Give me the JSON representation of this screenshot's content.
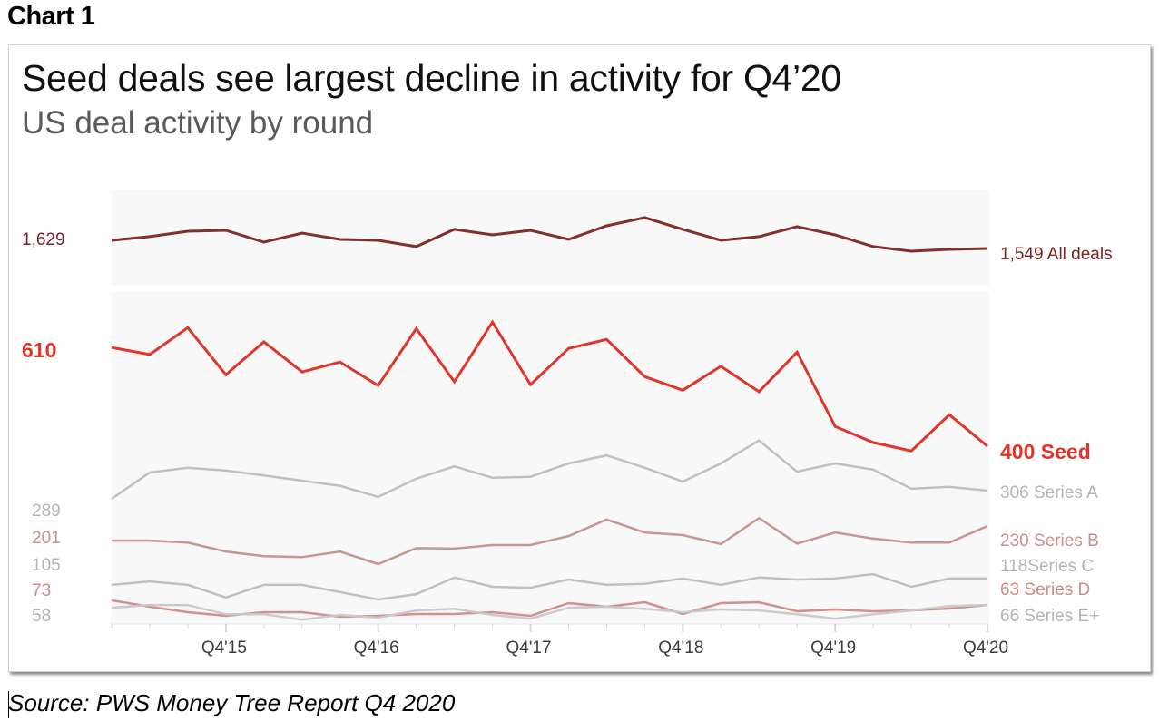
{
  "figure_label": "Chart 1",
  "source": "Source: PWS Money Tree Report Q4 2020",
  "chart_data": {
    "type": "line",
    "title": "Seed deals see largest decline in activity for Q4’20",
    "subtitle": "US deal activity by round",
    "xlabel": "",
    "ylabel": "",
    "grid": false,
    "legend": "direct labels at line ends (right)",
    "x": [
      "Q1'15",
      "Q2'15",
      "Q3'15",
      "Q4'15",
      "Q1'16",
      "Q2'16",
      "Q3'16",
      "Q4'16",
      "Q1'17",
      "Q2'17",
      "Q3'17",
      "Q4'17",
      "Q1'18",
      "Q2'18",
      "Q3'18",
      "Q4'18",
      "Q1'19",
      "Q2'19",
      "Q3'19",
      "Q4'19",
      "Q1'20",
      "Q2'20",
      "Q3'20",
      "Q4'20"
    ],
    "x_tick_labels": [
      "Q4'15",
      "Q4'16",
      "Q4'17",
      "Q4'18",
      "Q4'19",
      "Q4'20"
    ],
    "panels": [
      {
        "name": "top",
        "series": [
          "All deals"
        ]
      },
      {
        "name": "bottom",
        "series": [
          "Seed",
          "Series A",
          "Series B",
          "Series C",
          "Series D",
          "Series E+"
        ]
      }
    ],
    "series": [
      {
        "name": "All deals",
        "panel": "top",
        "color": "#7b2424",
        "start_label": "1,629",
        "end_label": "1,549 All deals",
        "ylim": [
          1184,
          2118
        ],
        "values": [
          1629,
          1665,
          1718,
          1727,
          1611,
          1700,
          1638,
          1629,
          1567,
          1736,
          1682,
          1727,
          1638,
          1771,
          1852,
          1736,
          1629,
          1665,
          1763,
          1682,
          1567,
          1522,
          1540,
          1549
        ]
      },
      {
        "name": "Seed",
        "panel": "bottom",
        "color": "#e0352b",
        "start_label": "610",
        "end_label": "400  Seed",
        "emphasis": true,
        "ylim": [
          18,
          728
        ],
        "values": [
          610,
          595,
          652,
          552,
          622,
          558,
          579,
          529,
          650,
          537,
          664,
          531,
          608,
          627,
          548,
          519,
          570,
          516,
          600,
          442,
          408,
          390,
          467,
          400
        ]
      },
      {
        "name": "Series A",
        "panel": "bottom",
        "color": "#bdbdbd",
        "start_label": "289",
        "end_label": "306 Series A",
        "ylim": [
          23,
          722
        ],
        "values": [
          289,
          344,
          354,
          348,
          338,
          327,
          316,
          293,
          331,
          357,
          333,
          335,
          363,
          380,
          354,
          325,
          363,
          411,
          346,
          363,
          350,
          310,
          314,
          306
        ]
      },
      {
        "name": "Series B",
        "panel": "bottom",
        "color": "#c4908c",
        "start_label": "201",
        "end_label": "230  Series B",
        "ylim": [
          31,
          697
        ],
        "values": [
          201,
          201,
          197,
          179,
          170,
          168,
          179,
          154,
          186,
          185,
          192,
          192,
          210,
          243,
          217,
          212,
          194,
          246,
          195,
          217,
          205,
          197,
          197,
          230
        ]
      },
      {
        "name": "Series C",
        "panel": "bottom",
        "color": "#bdbdbd",
        "start_label": "105",
        "end_label": "118Series C",
        "ylim": [
          21,
          706
        ],
        "values": [
          105,
          112,
          105,
          79,
          105,
          105,
          90,
          75,
          86,
          120,
          101,
          99,
          116,
          105,
          107,
          118,
          105,
          120,
          116,
          118,
          127,
          101,
          118,
          118
        ]
      },
      {
        "name": "Series D",
        "panel": "bottom",
        "color": "#d08a86",
        "start_label": "73",
        "end_label": "63  Series D",
        "ylim": [
          17,
          753
        ],
        "values": [
          73,
          59,
          47,
          39,
          47,
          47,
          37,
          39,
          43,
          43,
          47,
          39,
          67,
          59,
          69,
          43,
          67,
          69,
          49,
          53,
          49,
          51,
          55,
          63
        ]
      },
      {
        "name": "Series E+",
        "panel": "bottom",
        "color": "#c8c8c8",
        "start_label": "58",
        "end_label": "66  Series E+",
        "ylim": [
          5,
          987
        ],
        "values": [
          58,
          66,
          66,
          39,
          39,
          23,
          37,
          29,
          50,
          55,
          37,
          26,
          58,
          61,
          55,
          45,
          53,
          50,
          39,
          26,
          39,
          50,
          63,
          66
        ]
      }
    ]
  }
}
